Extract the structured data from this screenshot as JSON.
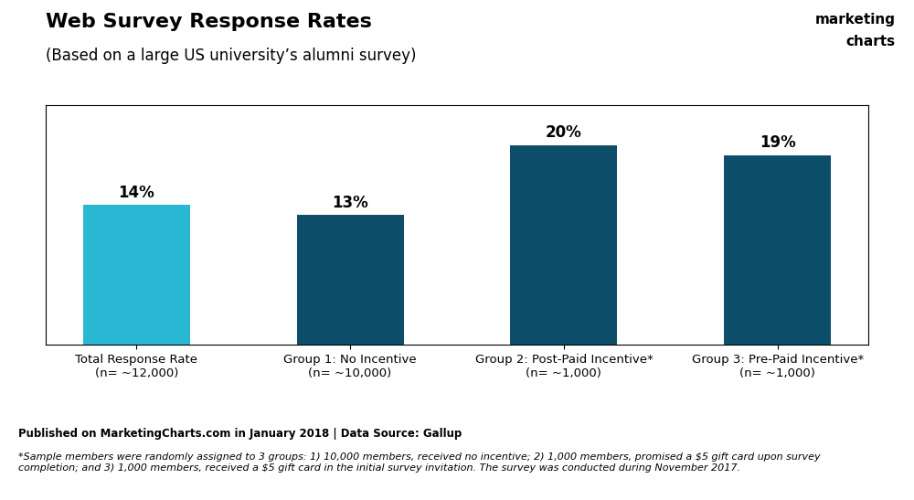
{
  "chart_data": {
    "type": "bar",
    "title": "Web Survey Response Rates",
    "subtitle": "(Based on a large US university’s alumni survey)",
    "categories": [
      "Total Response Rate\n(n= ~12,000)",
      "Group 1: No Incentive\n(n= ~10,000)",
      "Group 2: Post-Paid Incentive*\n(n= ~1,000)",
      "Group 3: Pre-Paid Incentive*\n(n= ~1,000)"
    ],
    "values": [
      14,
      13,
      20,
      19
    ],
    "value_labels": [
      "14%",
      "13%",
      "20%",
      "19%"
    ],
    "data_labels": true,
    "colors": [
      "#29b8d4",
      "#0d4f6b",
      "#0d4f6b",
      "#0d4f6b"
    ],
    "ylim": [
      0,
      24
    ],
    "yticks": [],
    "tick_labels": "x",
    "grid": false,
    "annotations": [
      "Published on MarketingCharts.com in January 2018 | Data Source: Gallup",
      "*Sample members were randomly assigned to 3 groups: 1) 10,000 members, received no incentive; 2) 1,000 members, promised a $5 gift card upon survey\ncompletion; and 3) 1,000 members, received a $5 gift card in the initial survey invitation. The survey was conducted during November 2017.",
      "marketing",
      "charts"
    ]
  }
}
